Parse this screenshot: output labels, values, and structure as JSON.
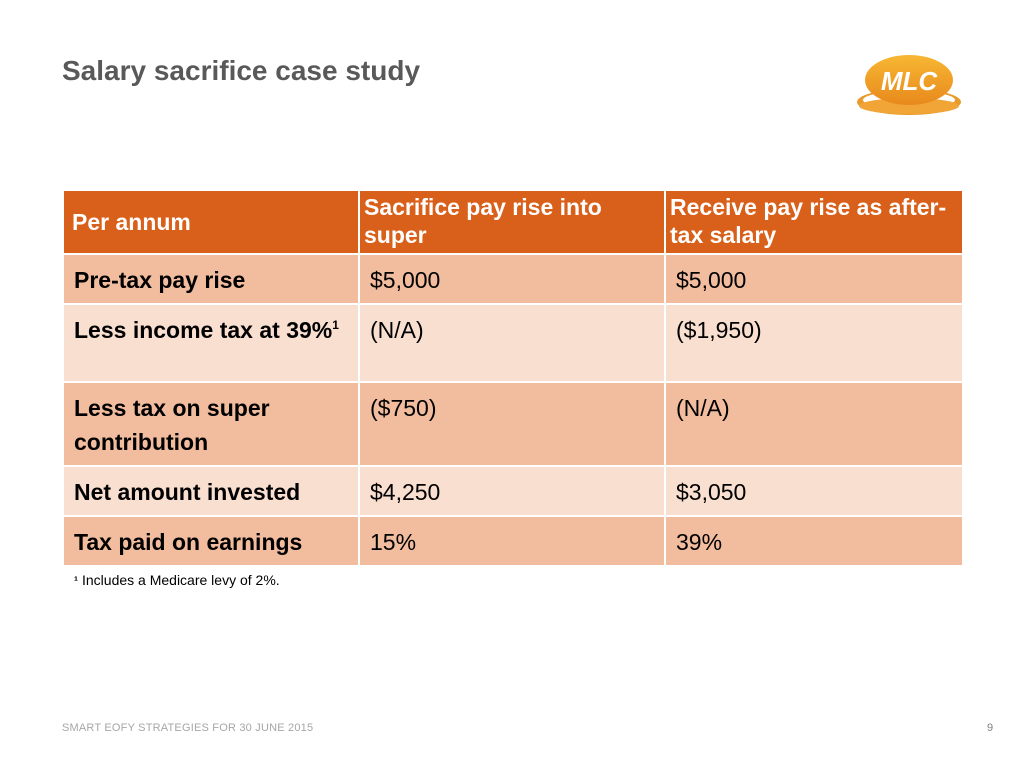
{
  "slide": {
    "title": "Salary sacrifice case study",
    "logo_text": "MLC",
    "brand_color": "#d9601a"
  },
  "table": {
    "headers": [
      "Per annum",
      "Sacrifice pay rise into super",
      "Receive pay rise as after-tax salary"
    ],
    "rows": [
      {
        "label": "Pre-tax pay rise",
        "footnote_mark": "",
        "sacrifice": "$5,000",
        "receive": "$5,000"
      },
      {
        "label": "Less income tax at 39%",
        "footnote_mark": "1",
        "sacrifice": "(N/A)",
        "receive": "($1,950)"
      },
      {
        "label": "Less tax on super contribution",
        "footnote_mark": "",
        "sacrifice": "($750)",
        "receive": "(N/A)"
      },
      {
        "label": "Net amount invested",
        "footnote_mark": "",
        "sacrifice": "$4,250",
        "receive": "$3,050"
      },
      {
        "label": "Tax paid on earnings",
        "footnote_mark": "",
        "sacrifice": "15%",
        "receive": "39%"
      }
    ]
  },
  "footnote": {
    "mark": "¹",
    "text": "Includes a Medicare levy of 2%."
  },
  "footer": {
    "text": "SMART EOFY STRATEGIES FOR 30 JUNE 2015",
    "page_number": "9"
  }
}
